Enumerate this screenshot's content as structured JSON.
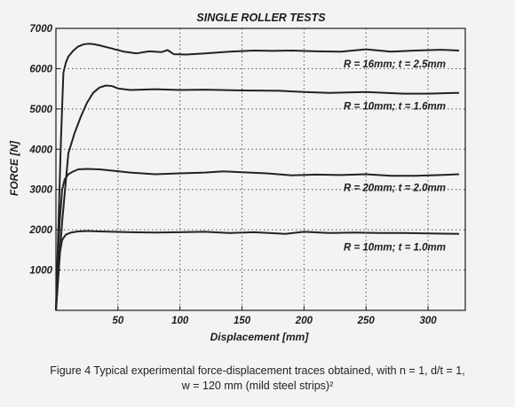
{
  "chart_data": {
    "type": "line",
    "title": "SINGLE ROLLER TESTS",
    "xlabel": "Displacement [mm]",
    "ylabel": "FORCE [N]",
    "xlim": [
      0,
      330
    ],
    "ylim": [
      0,
      7000
    ],
    "xticks": [
      50,
      100,
      150,
      200,
      250,
      300
    ],
    "yticks": [
      1000,
      2000,
      3000,
      4000,
      5000,
      6000,
      7000
    ],
    "grid": true,
    "series": [
      {
        "name": "R = 16mm; t = 2.5mm",
        "x": [
          0,
          4,
          6,
          8,
          10,
          14,
          18,
          22,
          26,
          30,
          35,
          45,
          55,
          65,
          75,
          85,
          90,
          95,
          105,
          120,
          140,
          160,
          175,
          190,
          210,
          230,
          250,
          270,
          290,
          310,
          325
        ],
        "y": [
          0,
          4200,
          5900,
          6150,
          6300,
          6450,
          6550,
          6600,
          6620,
          6610,
          6580,
          6500,
          6420,
          6380,
          6430,
          6410,
          6460,
          6360,
          6350,
          6380,
          6420,
          6450,
          6440,
          6450,
          6430,
          6420,
          6480,
          6420,
          6450,
          6470,
          6450
        ]
      },
      {
        "name": "R = 10mm; t = 1.6mm",
        "x": [
          0,
          5,
          10,
          15,
          20,
          25,
          30,
          35,
          40,
          45,
          50,
          60,
          80,
          100,
          120,
          150,
          180,
          200,
          220,
          250,
          280,
          300,
          325
        ],
        "y": [
          0,
          2200,
          3900,
          4400,
          4800,
          5150,
          5400,
          5530,
          5580,
          5570,
          5510,
          5470,
          5490,
          5470,
          5480,
          5460,
          5450,
          5420,
          5400,
          5420,
          5380,
          5380,
          5400
        ]
      },
      {
        "name": "R = 20mm; t = 2.0mm",
        "x": [
          0,
          3,
          5,
          7,
          10,
          14,
          18,
          25,
          35,
          45,
          60,
          80,
          100,
          120,
          135,
          150,
          170,
          190,
          210,
          230,
          250,
          270,
          290,
          310,
          325
        ],
        "y": [
          0,
          2200,
          3000,
          3250,
          3380,
          3450,
          3500,
          3510,
          3500,
          3470,
          3420,
          3380,
          3400,
          3420,
          3450,
          3430,
          3400,
          3350,
          3370,
          3360,
          3380,
          3340,
          3340,
          3360,
          3380
        ]
      },
      {
        "name": "R = 10mm; t = 1.0mm",
        "x": [
          0,
          3,
          5,
          8,
          12,
          18,
          25,
          35,
          45,
          60,
          80,
          100,
          120,
          140,
          160,
          185,
          200,
          220,
          240,
          260,
          280,
          300,
          325
        ],
        "y": [
          0,
          1400,
          1750,
          1880,
          1930,
          1960,
          1970,
          1960,
          1950,
          1940,
          1930,
          1940,
          1950,
          1920,
          1940,
          1900,
          1950,
          1920,
          1930,
          1920,
          1920,
          1910,
          1900
        ]
      }
    ]
  },
  "caption": {
    "line1": "Figure 4  Typical experimental force-displacement traces obtained, with n = 1, d/t = 1,",
    "line2": "w = 120 mm (mild steel strips)²"
  }
}
